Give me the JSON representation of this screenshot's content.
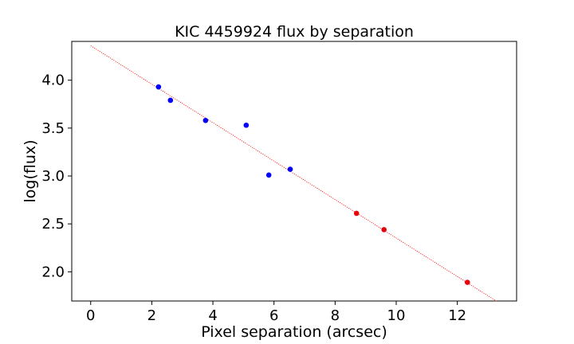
{
  "chart_data": {
    "type": "scatter",
    "title": "KIC 4459924 flux by separation",
    "xlabel": "Pixel separation (arcsec)",
    "ylabel": "log(flux)",
    "xlim": [
      -0.62,
      13.94
    ],
    "ylim": [
      1.695,
      4.405
    ],
    "xticks": [
      0,
      2,
      4,
      6,
      8,
      10,
      12
    ],
    "yticks": [
      2.0,
      2.5,
      3.0,
      3.5,
      4.0
    ],
    "xtick_labels": [
      "0",
      "2",
      "4",
      "6",
      "8",
      "10",
      "12"
    ],
    "ytick_labels": [
      "2.0",
      "2.5",
      "3.0",
      "3.5",
      "4.0"
    ],
    "grid": false,
    "series": [
      {
        "color": "#0000ff",
        "points": [
          {
            "x": 2.22,
            "y": 3.93
          },
          {
            "x": 2.61,
            "y": 3.79
          },
          {
            "x": 3.76,
            "y": 3.58
          },
          {
            "x": 5.09,
            "y": 3.53
          },
          {
            "x": 5.83,
            "y": 3.01
          },
          {
            "x": 6.53,
            "y": 3.07
          }
        ]
      },
      {
        "color": "#e8000b",
        "points": [
          {
            "x": 8.7,
            "y": 2.61
          },
          {
            "x": 9.6,
            "y": 2.44
          },
          {
            "x": 12.33,
            "y": 1.89
          }
        ]
      }
    ],
    "fit_line": {
      "color": "#ff0000",
      "style": "dotted",
      "x": [
        0,
        13.3
      ],
      "y": [
        4.36,
        1.69
      ]
    }
  }
}
